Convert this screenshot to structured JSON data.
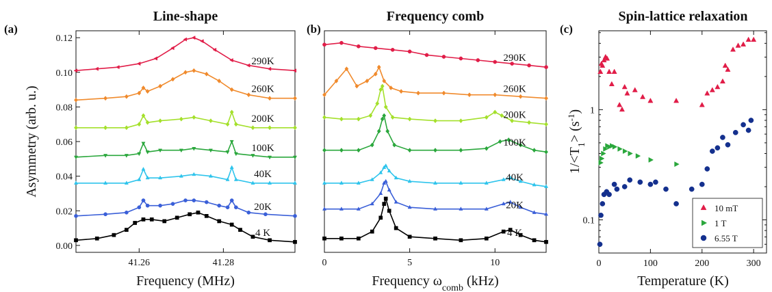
{
  "chart_data": [
    {
      "type": "line",
      "letter": "(a)",
      "title": "Line-shape",
      "xlabel": "Frequency (MHz)",
      "ylabel": "Asymmetry (arb. u.)",
      "xlim": [
        41.245,
        41.297
      ],
      "ylim": [
        -0.004,
        0.124
      ],
      "xticks": [
        "41.26",
        "41.28"
      ],
      "xtick_values": [
        41.26,
        41.28
      ],
      "yticks": [
        "0.00",
        "0.02",
        "0.04",
        "0.06",
        "0.08",
        "0.10",
        "0.12"
      ],
      "ytick_values": [
        0.0,
        0.02,
        0.04,
        0.06,
        0.08,
        0.1,
        0.12
      ],
      "series": [
        {
          "name": "4 K",
          "color": "#000000",
          "marker": "square",
          "x": [
            41.245,
            41.25,
            41.254,
            41.257,
            41.259,
            41.261,
            41.263,
            41.266,
            41.269,
            41.272,
            41.274,
            41.276,
            41.279,
            41.282,
            41.284,
            41.287,
            41.291,
            41.297
          ],
          "y": [
            0.003,
            0.004,
            0.006,
            0.009,
            0.013,
            0.015,
            0.015,
            0.014,
            0.016,
            0.018,
            0.019,
            0.017,
            0.014,
            0.012,
            0.009,
            0.005,
            0.003,
            0.002
          ]
        },
        {
          "name": "20K",
          "color": "#3a5fd8",
          "marker": "circle",
          "x": [
            41.245,
            41.252,
            41.257,
            41.26,
            41.261,
            41.262,
            41.265,
            41.268,
            41.271,
            41.273,
            41.276,
            41.279,
            41.281,
            41.282,
            41.283,
            41.286,
            41.29,
            41.297
          ],
          "y": [
            0.017,
            0.018,
            0.019,
            0.022,
            0.026,
            0.023,
            0.023,
            0.024,
            0.026,
            0.026,
            0.025,
            0.023,
            0.022,
            0.026,
            0.022,
            0.019,
            0.018,
            0.017
          ]
        },
        {
          "name": "40K",
          "color": "#2ec4ec",
          "marker": "triangle-up",
          "x": [
            41.245,
            41.252,
            41.257,
            41.26,
            41.261,
            41.262,
            41.265,
            41.27,
            41.273,
            41.277,
            41.281,
            41.282,
            41.283,
            41.287,
            41.291,
            41.297
          ],
          "y": [
            0.036,
            0.036,
            0.036,
            0.038,
            0.044,
            0.039,
            0.039,
            0.04,
            0.041,
            0.04,
            0.038,
            0.045,
            0.038,
            0.036,
            0.036,
            0.036
          ]
        },
        {
          "name": "100K",
          "color": "#2aa73c",
          "marker": "triangle-down",
          "x": [
            41.245,
            41.252,
            41.257,
            41.26,
            41.261,
            41.262,
            41.265,
            41.27,
            41.273,
            41.277,
            41.281,
            41.282,
            41.283,
            41.287,
            41.291,
            41.297
          ],
          "y": [
            0.051,
            0.052,
            0.052,
            0.053,
            0.059,
            0.054,
            0.055,
            0.055,
            0.056,
            0.055,
            0.054,
            0.06,
            0.053,
            0.052,
            0.051,
            0.051
          ]
        },
        {
          "name": "200K",
          "color": "#a4e02b",
          "marker": "diamond",
          "x": [
            41.245,
            41.252,
            41.257,
            41.26,
            41.261,
            41.262,
            41.265,
            41.27,
            41.273,
            41.277,
            41.281,
            41.282,
            41.283,
            41.287,
            41.291,
            41.297
          ],
          "y": [
            0.068,
            0.068,
            0.068,
            0.07,
            0.075,
            0.071,
            0.072,
            0.073,
            0.074,
            0.072,
            0.07,
            0.077,
            0.07,
            0.068,
            0.068,
            0.068
          ]
        },
        {
          "name": "260K",
          "color": "#f08a2c",
          "marker": "diamond",
          "x": [
            41.245,
            41.252,
            41.257,
            41.26,
            41.261,
            41.262,
            41.265,
            41.268,
            41.271,
            41.273,
            41.276,
            41.279,
            41.282,
            41.286,
            41.291,
            41.297
          ],
          "y": [
            0.084,
            0.085,
            0.086,
            0.088,
            0.091,
            0.089,
            0.092,
            0.096,
            0.1,
            0.101,
            0.099,
            0.095,
            0.09,
            0.087,
            0.085,
            0.085
          ]
        },
        {
          "name": "290K",
          "color": "#e11d48",
          "marker": "triangle-left",
          "x": [
            41.245,
            41.25,
            41.255,
            41.26,
            41.264,
            41.268,
            41.271,
            41.273,
            41.275,
            41.278,
            41.282,
            41.286,
            41.291,
            41.297
          ],
          "y": [
            0.101,
            0.102,
            0.103,
            0.105,
            0.108,
            0.114,
            0.119,
            0.12,
            0.118,
            0.113,
            0.107,
            0.104,
            0.102,
            0.101
          ]
        }
      ]
    },
    {
      "type": "line",
      "letter": "(b)",
      "title": "Frequency comb",
      "xlabel_main": "Frequency ω",
      "xlabel_sub": "comb",
      "xlabel_tail": " (kHz)",
      "ylabel": "",
      "xlim": [
        0,
        13
      ],
      "ylim": [
        -0.004,
        0.124
      ],
      "xticks": [
        "0",
        "5",
        "10"
      ],
      "xtick_values": [
        0,
        5,
        10
      ],
      "yticks": [],
      "series": [
        {
          "name": "4 K",
          "color": "#000000",
          "marker": "square",
          "x": [
            0,
            1,
            2,
            2.8,
            3.3,
            3.5,
            3.6,
            3.8,
            4.2,
            5,
            6.5,
            8,
            9.5,
            10.5,
            10.9,
            11.5,
            12.3,
            13
          ],
          "y": [
            0.004,
            0.004,
            0.004,
            0.008,
            0.016,
            0.024,
            0.027,
            0.02,
            0.01,
            0.005,
            0.004,
            0.003,
            0.004,
            0.008,
            0.009,
            0.006,
            0.003,
            0.002
          ]
        },
        {
          "name": "20K",
          "color": "#3a5fd8",
          "marker": "triangle-up",
          "x": [
            0,
            1,
            2,
            2.8,
            3.3,
            3.5,
            3.6,
            3.8,
            4.2,
            5,
            6.5,
            8,
            9.5,
            10.5,
            10.9,
            11.5,
            12.3,
            13
          ],
          "y": [
            0.021,
            0.021,
            0.021,
            0.024,
            0.03,
            0.036,
            0.037,
            0.032,
            0.025,
            0.022,
            0.021,
            0.021,
            0.021,
            0.024,
            0.025,
            0.022,
            0.019,
            0.018
          ]
        },
        {
          "name": "40K",
          "color": "#2ec4ec",
          "marker": "triangle-up",
          "x": [
            0,
            1,
            2,
            2.8,
            3.3,
            3.5,
            3.6,
            3.8,
            4.2,
            5,
            6.5,
            8,
            9.5,
            10.5,
            10.9,
            11.5,
            12.3,
            13
          ],
          "y": [
            0.036,
            0.036,
            0.036,
            0.038,
            0.042,
            0.045,
            0.046,
            0.043,
            0.039,
            0.037,
            0.036,
            0.036,
            0.036,
            0.038,
            0.039,
            0.037,
            0.035,
            0.034
          ]
        },
        {
          "name": "100K",
          "color": "#2aa73c",
          "marker": "diamond",
          "x": [
            0,
            1,
            2,
            2.8,
            3.2,
            3.4,
            3.5,
            3.7,
            4.1,
            5,
            6.5,
            8,
            9.5,
            10.3,
            10.8,
            11.5,
            12.3,
            13
          ],
          "y": [
            0.055,
            0.055,
            0.055,
            0.058,
            0.066,
            0.073,
            0.075,
            0.066,
            0.058,
            0.055,
            0.055,
            0.055,
            0.056,
            0.06,
            0.061,
            0.058,
            0.055,
            0.054
          ]
        },
        {
          "name": "200K",
          "color": "#a4e02b",
          "marker": "diamond",
          "x": [
            0,
            1,
            2,
            2.7,
            3.1,
            3.3,
            3.4,
            3.6,
            4.0,
            5,
            6.5,
            8,
            9.5,
            10.0,
            10.4,
            11,
            12,
            13
          ],
          "y": [
            0.074,
            0.073,
            0.073,
            0.075,
            0.082,
            0.09,
            0.092,
            0.08,
            0.074,
            0.073,
            0.072,
            0.072,
            0.074,
            0.077,
            0.075,
            0.072,
            0.071,
            0.07
          ]
        },
        {
          "name": "260K",
          "color": "#f08a2c",
          "marker": "diamond",
          "x": [
            0,
            0.7,
            1.3,
            1.9,
            2.5,
            3.0,
            3.2,
            3.5,
            3.9,
            4.5,
            5.5,
            7,
            8.5,
            10,
            11.5,
            13
          ],
          "y": [
            0.087,
            0.095,
            0.102,
            0.092,
            0.095,
            0.099,
            0.103,
            0.095,
            0.091,
            0.089,
            0.088,
            0.088,
            0.087,
            0.087,
            0.086,
            0.085
          ]
        },
        {
          "name": "290K",
          "color": "#e11d48",
          "marker": "circle",
          "x": [
            0,
            1,
            2,
            3,
            4,
            5,
            6,
            7,
            8,
            9,
            10,
            11,
            12,
            13
          ],
          "y": [
            0.116,
            0.117,
            0.115,
            0.114,
            0.113,
            0.112,
            0.11,
            0.109,
            0.108,
            0.107,
            0.106,
            0.105,
            0.104,
            0.103
          ]
        }
      ]
    },
    {
      "type": "scatter",
      "letter": "(c)",
      "title": "Spin-lattice relaxation",
      "xlabel": "Temperature (K)",
      "ylabel_parts": [
        "1/<T",
        "1",
        "> (s",
        "-1",
        ")"
      ],
      "xlim": [
        0,
        325
      ],
      "ylim_log": [
        0.05,
        5.2
      ],
      "scale": "log",
      "xticks": [
        "0",
        "100",
        "200",
        "300"
      ],
      "xtick_values": [
        0,
        100,
        200,
        300
      ],
      "yticks": [
        "0.1",
        "1"
      ],
      "ytick_values": [
        0.1,
        1
      ],
      "legend_position": "bottom-right",
      "series": [
        {
          "name": "10 mT",
          "color": "#e11d48",
          "marker": "triangle-up",
          "x": [
            3,
            5,
            7,
            10,
            13,
            16,
            20,
            25,
            30,
            40,
            45,
            50,
            55,
            70,
            85,
            100,
            150,
            200,
            210,
            220,
            230,
            240,
            245,
            250,
            260,
            270,
            280,
            290,
            300
          ],
          "y": [
            2.2,
            2.6,
            2.5,
            2.8,
            3.0,
            2.9,
            2.2,
            1.7,
            2.2,
            1.1,
            1.0,
            1.6,
            1.4,
            1.5,
            1.3,
            1.2,
            1.2,
            1.1,
            1.4,
            1.5,
            1.6,
            1.8,
            2.5,
            2.3,
            3.5,
            3.8,
            3.9,
            4.3,
            4.3
          ]
        },
        {
          "name": "1 T",
          "color": "#2aa73c",
          "marker": "triangle-right",
          "x": [
            3,
            5,
            8,
            12,
            16,
            20,
            25,
            30,
            40,
            50,
            60,
            75,
            100,
            150
          ],
          "y": [
            0.33,
            0.36,
            0.4,
            0.44,
            0.47,
            0.46,
            0.47,
            0.46,
            0.44,
            0.42,
            0.4,
            0.38,
            0.35,
            0.32
          ]
        },
        {
          "name": "6.55 T",
          "color": "#14308e",
          "marker": "circle",
          "x": [
            2,
            4,
            7,
            10,
            15,
            20,
            30,
            35,
            50,
            60,
            80,
            100,
            110,
            130,
            150,
            180,
            200,
            210,
            220,
            230,
            240,
            250,
            265,
            280,
            290,
            295
          ],
          "y": [
            0.06,
            0.11,
            0.14,
            0.17,
            0.18,
            0.17,
            0.21,
            0.19,
            0.2,
            0.23,
            0.22,
            0.21,
            0.22,
            0.19,
            0.14,
            0.19,
            0.21,
            0.29,
            0.42,
            0.45,
            0.56,
            0.48,
            0.62,
            0.73,
            0.65,
            0.8
          ]
        }
      ]
    }
  ]
}
